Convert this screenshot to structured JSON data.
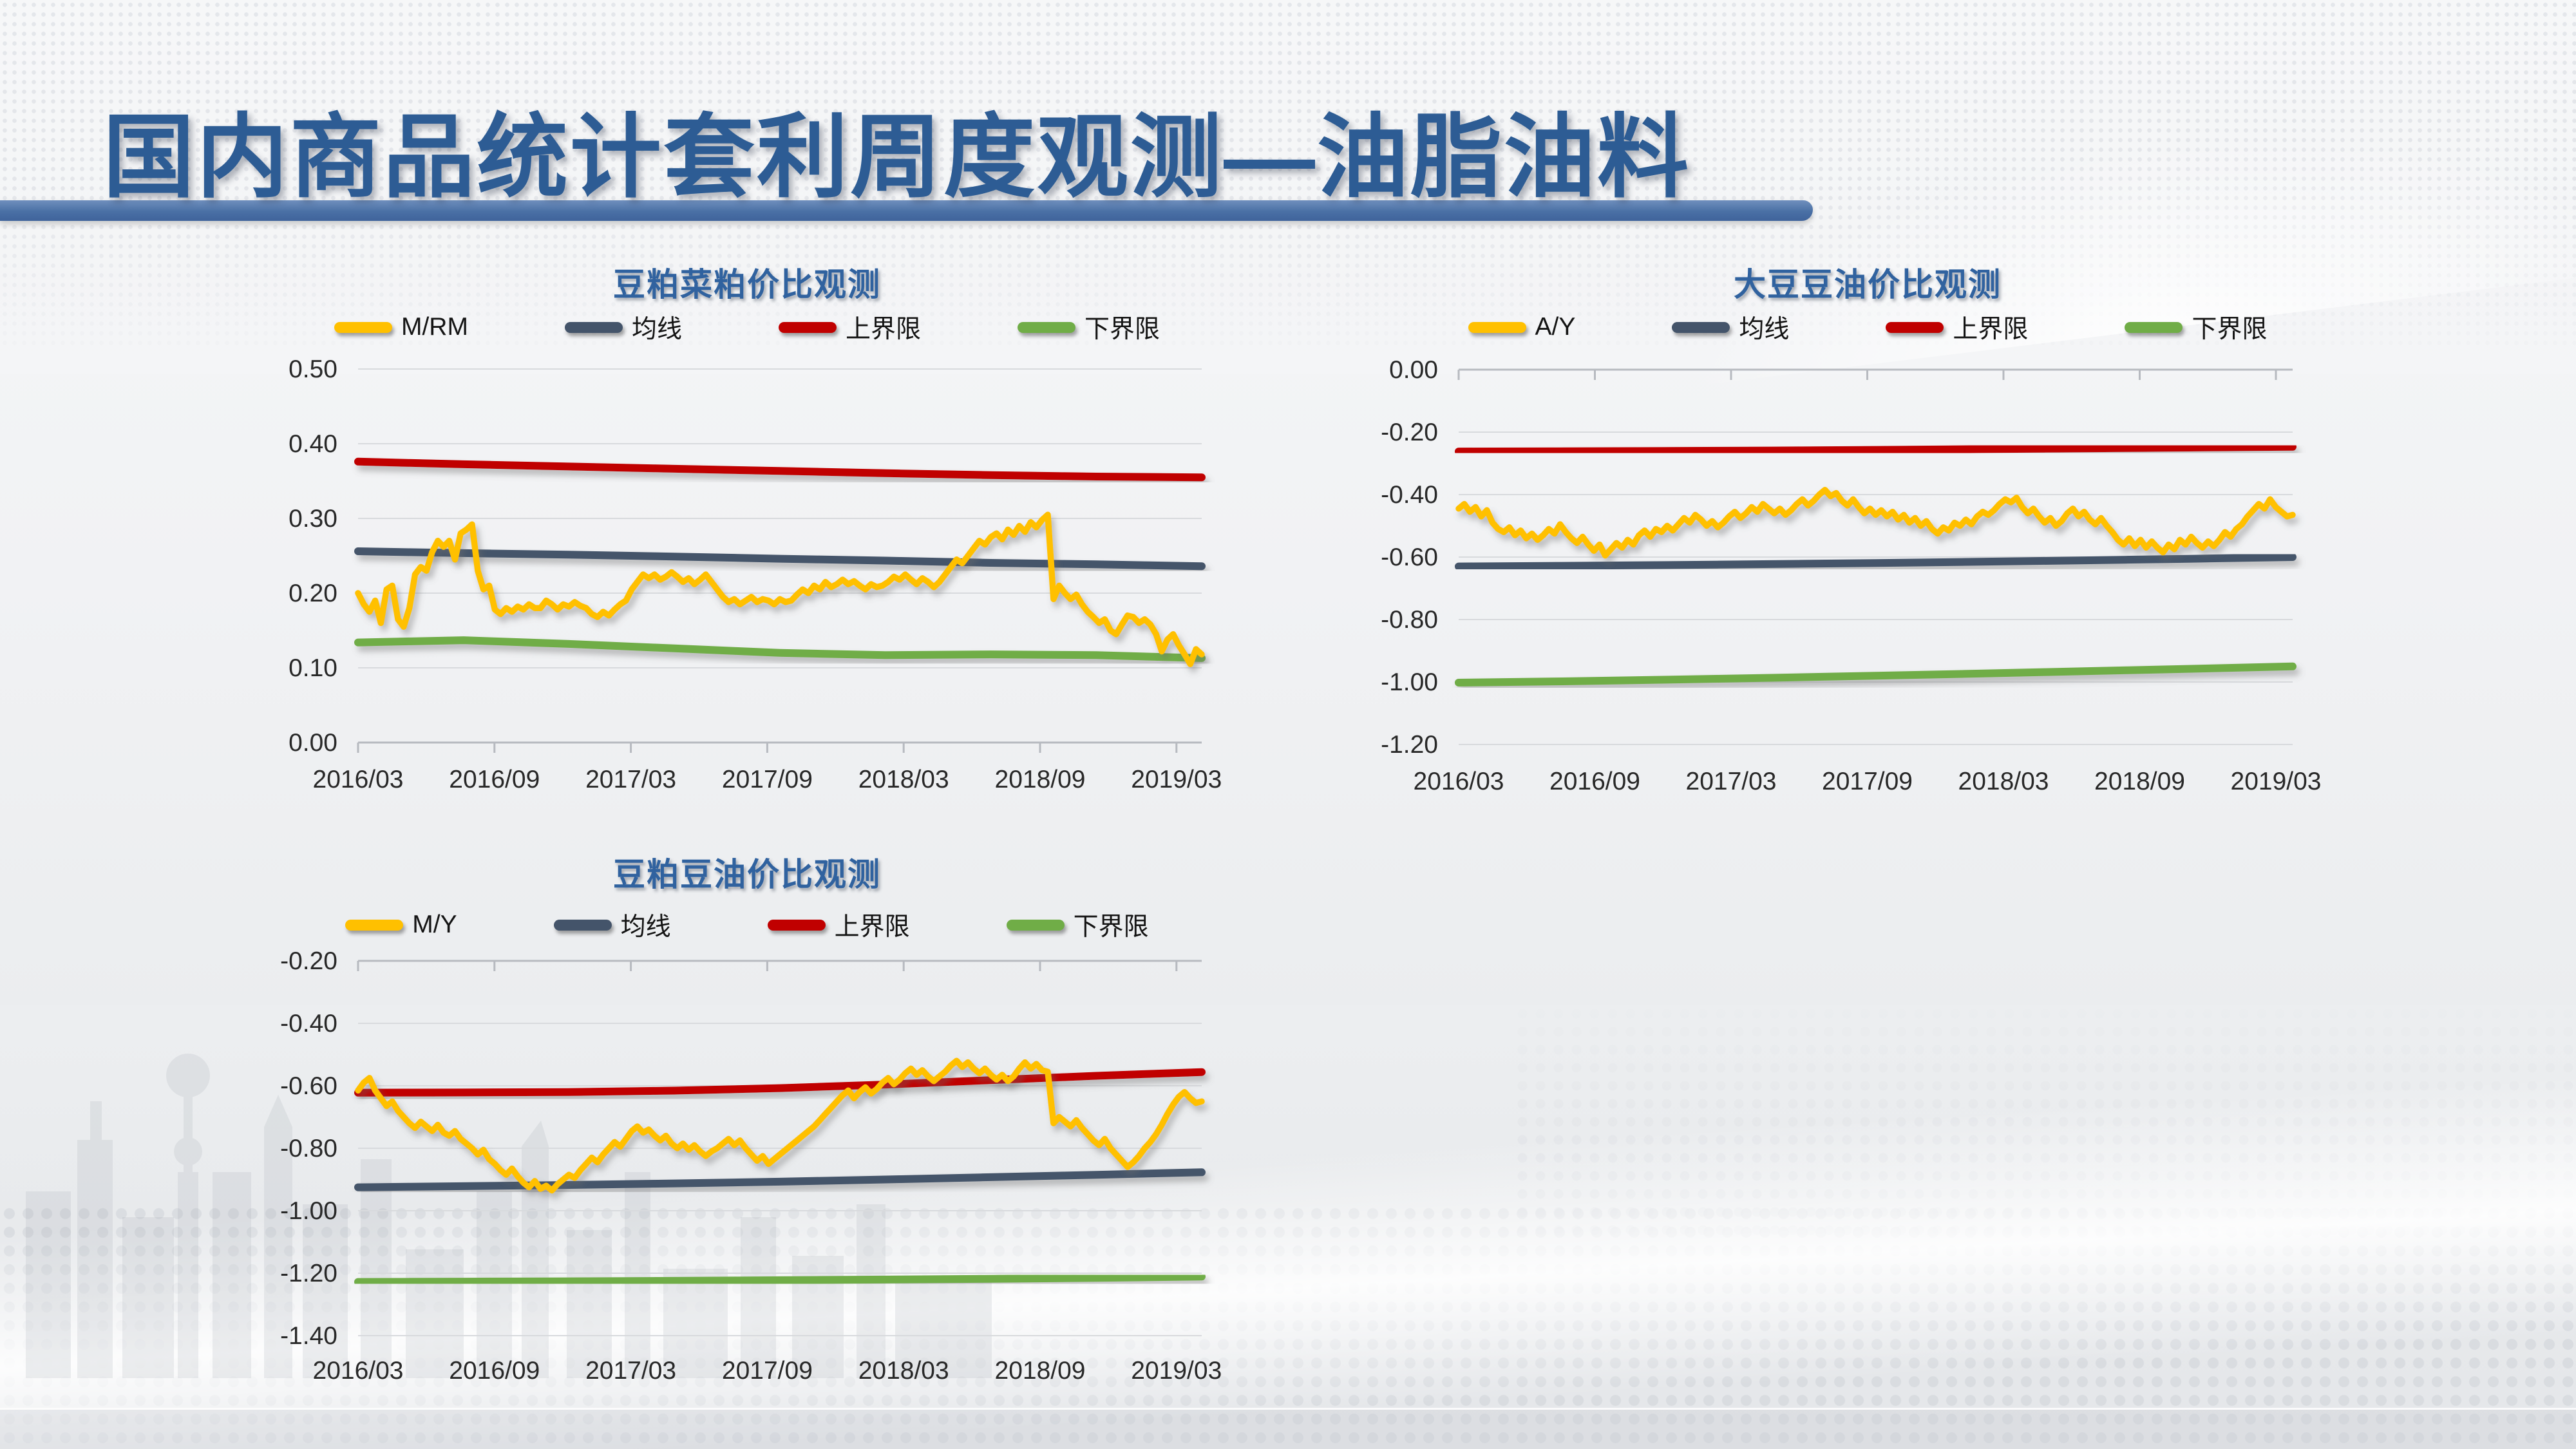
{
  "slide": {
    "title": "国内商品统计套利周度观测—油脂油料",
    "accent_colors": {
      "title_blue": "#2d5c94",
      "bar_blue": "#4a70a5"
    }
  },
  "chart_data": [
    {
      "type": "line",
      "title": "豆粕菜粕价比观测",
      "xlabel": "",
      "ylabel": "",
      "ylim": [
        0.0,
        0.5
      ],
      "grid": true,
      "legend_position": "top",
      "x_ticks": [
        "2016/03",
        "2016/09",
        "2017/03",
        "2017/09",
        "2018/03",
        "2018/09",
        "2019/03"
      ],
      "y_ticks": [
        "0.50",
        "0.40",
        "0.30",
        "0.20",
        "0.10",
        "0.00"
      ],
      "series": [
        {
          "name": "M/RM",
          "color": "#FFC000",
          "values": [
            0.2,
            0.185,
            0.175,
            0.19,
            0.16,
            0.205,
            0.21,
            0.165,
            0.155,
            0.18,
            0.225,
            0.235,
            0.23,
            0.255,
            0.27,
            0.262,
            0.27,
            0.245,
            0.28,
            0.285,
            0.292,
            0.23,
            0.205,
            0.21,
            0.178,
            0.172,
            0.18,
            0.175,
            0.182,
            0.178,
            0.185,
            0.18,
            0.18,
            0.19,
            0.185,
            0.178,
            0.185,
            0.182,
            0.188,
            0.183,
            0.18,
            0.172,
            0.168,
            0.175,
            0.17,
            0.178,
            0.185,
            0.19,
            0.205,
            0.215,
            0.225,
            0.22,
            0.225,
            0.218,
            0.222,
            0.228,
            0.222,
            0.215,
            0.22,
            0.212,
            0.218,
            0.225,
            0.215,
            0.205,
            0.195,
            0.188,
            0.192,
            0.185,
            0.19,
            0.195,
            0.188,
            0.192,
            0.19,
            0.185,
            0.192,
            0.188,
            0.19,
            0.198,
            0.205,
            0.2,
            0.21,
            0.205,
            0.215,
            0.208,
            0.212,
            0.218,
            0.212,
            0.216,
            0.21,
            0.205,
            0.212,
            0.208,
            0.21,
            0.215,
            0.222,
            0.218,
            0.225,
            0.218,
            0.212,
            0.22,
            0.215,
            0.208,
            0.215,
            0.225,
            0.235,
            0.245,
            0.24,
            0.25,
            0.26,
            0.27,
            0.265,
            0.275,
            0.28,
            0.272,
            0.285,
            0.278,
            0.29,
            0.282,
            0.295,
            0.288,
            0.298,
            0.305,
            0.192,
            0.21,
            0.2,
            0.192,
            0.198,
            0.185,
            0.175,
            0.168,
            0.16,
            0.165,
            0.15,
            0.145,
            0.158,
            0.17,
            0.168,
            0.16,
            0.165,
            0.158,
            0.145,
            0.122,
            0.138,
            0.145,
            0.13,
            0.118,
            0.105,
            0.125,
            0.118
          ]
        },
        {
          "name": "均线",
          "color": "#44546A",
          "values": [
            0.256,
            0.2535,
            0.2515,
            0.249,
            0.246,
            0.2435,
            0.2405,
            0.2385,
            0.236
          ]
        },
        {
          "name": "上界限",
          "color": "#C00000",
          "values": [
            0.376,
            0.3725,
            0.3695,
            0.3665,
            0.3635,
            0.3605,
            0.358,
            0.356,
            0.355
          ]
        },
        {
          "name": "下界限",
          "color": "#70AD47",
          "values": [
            0.134,
            0.137,
            0.132,
            0.126,
            0.12,
            0.117,
            0.118,
            0.117,
            0.113
          ]
        }
      ]
    },
    {
      "type": "line",
      "title": "大豆豆油价比观测",
      "xlabel": "",
      "ylabel": "",
      "ylim": [
        -1.2,
        0.0
      ],
      "grid": true,
      "legend_position": "top",
      "x_ticks": [
        "2016/03",
        "2016/09",
        "2017/03",
        "2017/09",
        "2018/03",
        "2018/09",
        "2019/03"
      ],
      "y_ticks": [
        "0.00",
        "-0.20",
        "-0.40",
        "-0.60",
        "-0.80",
        "-1.00",
        "-1.20"
      ],
      "series": [
        {
          "name": "A/Y",
          "color": "#FFC000",
          "values": [
            -0.445,
            -0.43,
            -0.455,
            -0.44,
            -0.47,
            -0.45,
            -0.49,
            -0.51,
            -0.52,
            -0.505,
            -0.53,
            -0.515,
            -0.54,
            -0.525,
            -0.545,
            -0.53,
            -0.51,
            -0.525,
            -0.495,
            -0.52,
            -0.54,
            -0.555,
            -0.535,
            -0.56,
            -0.58,
            -0.56,
            -0.595,
            -0.575,
            -0.555,
            -0.57,
            -0.545,
            -0.56,
            -0.53,
            -0.515,
            -0.535,
            -0.51,
            -0.52,
            -0.5,
            -0.515,
            -0.495,
            -0.475,
            -0.49,
            -0.465,
            -0.48,
            -0.5,
            -0.485,
            -0.505,
            -0.49,
            -0.47,
            -0.455,
            -0.475,
            -0.46,
            -0.44,
            -0.455,
            -0.43,
            -0.445,
            -0.46,
            -0.445,
            -0.465,
            -0.45,
            -0.43,
            -0.415,
            -0.435,
            -0.42,
            -0.4,
            -0.385,
            -0.405,
            -0.395,
            -0.42,
            -0.435,
            -0.415,
            -0.44,
            -0.46,
            -0.445,
            -0.465,
            -0.45,
            -0.47,
            -0.455,
            -0.48,
            -0.465,
            -0.49,
            -0.475,
            -0.5,
            -0.485,
            -0.51,
            -0.525,
            -0.505,
            -0.515,
            -0.49,
            -0.5,
            -0.48,
            -0.495,
            -0.47,
            -0.455,
            -0.465,
            -0.45,
            -0.43,
            -0.415,
            -0.425,
            -0.41,
            -0.44,
            -0.46,
            -0.445,
            -0.47,
            -0.49,
            -0.475,
            -0.5,
            -0.485,
            -0.46,
            -0.445,
            -0.47,
            -0.455,
            -0.48,
            -0.495,
            -0.475,
            -0.5,
            -0.52,
            -0.545,
            -0.56,
            -0.54,
            -0.565,
            -0.545,
            -0.57,
            -0.55,
            -0.57,
            -0.585,
            -0.56,
            -0.575,
            -0.545,
            -0.56,
            -0.535,
            -0.555,
            -0.57,
            -0.55,
            -0.565,
            -0.545,
            -0.52,
            -0.535,
            -0.51,
            -0.495,
            -0.47,
            -0.45,
            -0.43,
            -0.445,
            -0.415,
            -0.44,
            -0.455,
            -0.47,
            -0.465
          ]
        },
        {
          "name": "均线",
          "color": "#44546A",
          "values": [
            -0.63,
            -0.628,
            -0.6255,
            -0.6225,
            -0.619,
            -0.615,
            -0.6105,
            -0.6055,
            -0.6
          ]
        },
        {
          "name": "上界限",
          "color": "#C00000",
          "values": [
            -0.262,
            -0.2615,
            -0.2605,
            -0.259,
            -0.257,
            -0.2545,
            -0.252,
            -0.2495,
            -0.247
          ]
        },
        {
          "name": "下界限",
          "color": "#70AD47",
          "values": [
            -1.002,
            -0.998,
            -0.9925,
            -0.9865,
            -0.98,
            -0.973,
            -0.9655,
            -0.958,
            -0.95
          ]
        }
      ]
    },
    {
      "type": "line",
      "title": "豆粕豆油价比观测",
      "xlabel": "",
      "ylabel": "",
      "ylim": [
        -1.4,
        -0.2
      ],
      "grid": true,
      "legend_position": "top",
      "x_ticks": [
        "2016/03",
        "2016/09",
        "2017/03",
        "2017/09",
        "2018/03",
        "2018/09",
        "2019/03"
      ],
      "y_ticks": [
        "-0.20",
        "-0.40",
        "-0.60",
        "-0.80",
        "-1.00",
        "-1.20",
        "-1.40"
      ],
      "series": [
        {
          "name": "M/Y",
          "color": "#FFC000",
          "values": [
            -0.615,
            -0.59,
            -0.575,
            -0.615,
            -0.64,
            -0.665,
            -0.65,
            -0.68,
            -0.7,
            -0.72,
            -0.735,
            -0.715,
            -0.73,
            -0.745,
            -0.725,
            -0.75,
            -0.76,
            -0.745,
            -0.77,
            -0.785,
            -0.8,
            -0.82,
            -0.805,
            -0.835,
            -0.85,
            -0.87,
            -0.885,
            -0.865,
            -0.89,
            -0.91,
            -0.925,
            -0.905,
            -0.93,
            -0.92,
            -0.935,
            -0.915,
            -0.9,
            -0.885,
            -0.895,
            -0.87,
            -0.85,
            -0.83,
            -0.845,
            -0.82,
            -0.8,
            -0.78,
            -0.795,
            -0.77,
            -0.745,
            -0.73,
            -0.75,
            -0.74,
            -0.76,
            -0.775,
            -0.76,
            -0.785,
            -0.8,
            -0.785,
            -0.805,
            -0.79,
            -0.81,
            -0.825,
            -0.81,
            -0.8,
            -0.785,
            -0.77,
            -0.79,
            -0.775,
            -0.8,
            -0.82,
            -0.84,
            -0.825,
            -0.85,
            -0.835,
            -0.82,
            -0.805,
            -0.79,
            -0.775,
            -0.76,
            -0.745,
            -0.73,
            -0.71,
            -0.69,
            -0.67,
            -0.65,
            -0.63,
            -0.615,
            -0.64,
            -0.62,
            -0.605,
            -0.625,
            -0.61,
            -0.59,
            -0.575,
            -0.595,
            -0.58,
            -0.56,
            -0.545,
            -0.565,
            -0.55,
            -0.57,
            -0.585,
            -0.57,
            -0.555,
            -0.535,
            -0.52,
            -0.54,
            -0.525,
            -0.545,
            -0.56,
            -0.545,
            -0.565,
            -0.58,
            -0.565,
            -0.585,
            -0.57,
            -0.545,
            -0.525,
            -0.545,
            -0.53,
            -0.55,
            -0.555,
            -0.72,
            -0.7,
            -0.715,
            -0.73,
            -0.71,
            -0.735,
            -0.755,
            -0.775,
            -0.79,
            -0.77,
            -0.8,
            -0.82,
            -0.84,
            -0.86,
            -0.845,
            -0.825,
            -0.8,
            -0.78,
            -0.755,
            -0.725,
            -0.69,
            -0.66,
            -0.635,
            -0.62,
            -0.64,
            -0.655,
            -0.65
          ]
        },
        {
          "name": "均线",
          "color": "#44546A",
          "values": [
            -0.925,
            -0.9215,
            -0.9175,
            -0.9125,
            -0.907,
            -0.9,
            -0.8925,
            -0.885,
            -0.877
          ]
        },
        {
          "name": "上界限",
          "color": "#C00000",
          "values": [
            -0.622,
            -0.6215,
            -0.62,
            -0.6155,
            -0.6075,
            -0.596,
            -0.582,
            -0.568,
            -0.556
          ]
        },
        {
          "name": "下界限",
          "color": "#70AD47",
          "values": [
            -1.228,
            -1.227,
            -1.226,
            -1.2245,
            -1.2225,
            -1.2205,
            -1.218,
            -1.215,
            -1.211
          ]
        }
      ]
    }
  ]
}
